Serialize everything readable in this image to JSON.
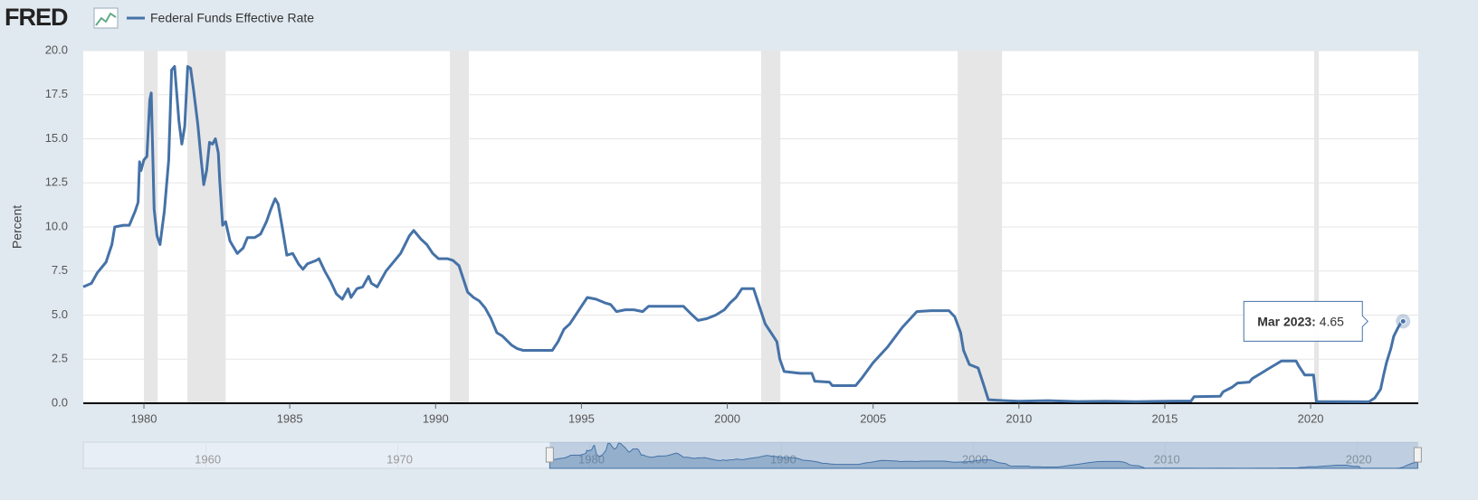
{
  "header": {
    "logo": "FRED"
  },
  "chart_data": {
    "type": "line",
    "y_label": "Percent",
    "series": [
      {
        "name": "Federal Funds Effective Rate",
        "color": "#4572a7",
        "x": [
          1977.92,
          1978.2,
          1978.4,
          1978.7,
          1978.9,
          1979.0,
          1979.3,
          1979.5,
          1979.7,
          1979.8,
          1979.85,
          1979.9,
          1980.0,
          1980.1,
          1980.2,
          1980.25,
          1980.35,
          1980.45,
          1980.55,
          1980.7,
          1980.85,
          1980.95,
          1981.05,
          1981.2,
          1981.3,
          1981.4,
          1981.5,
          1981.6,
          1981.7,
          1981.85,
          1981.95,
          1982.05,
          1982.15,
          1982.25,
          1982.35,
          1982.45,
          1982.55,
          1982.6,
          1982.7,
          1982.8,
          1982.95,
          1983.2,
          1983.4,
          1983.55,
          1983.8,
          1984.0,
          1984.2,
          1984.35,
          1984.5,
          1984.6,
          1984.75,
          1984.9,
          1985.1,
          1985.3,
          1985.45,
          1985.6,
          1985.9,
          1986.0,
          1986.2,
          1986.4,
          1986.6,
          1986.8,
          1987.0,
          1987.1,
          1987.3,
          1987.5,
          1987.7,
          1987.8,
          1988.0,
          1988.3,
          1988.6,
          1988.8,
          1989.1,
          1989.25,
          1989.5,
          1989.7,
          1989.9,
          1990.1,
          1990.4,
          1990.6,
          1990.8,
          1990.9,
          1991.1,
          1991.3,
          1991.5,
          1991.7,
          1991.9,
          1992.1,
          1992.3,
          1992.6,
          1992.8,
          1993.0,
          1993.5,
          1994.0,
          1994.2,
          1994.4,
          1994.6,
          1994.8,
          1995.0,
          1995.2,
          1995.5,
          1995.8,
          1996.0,
          1996.2,
          1996.5,
          1996.8,
          1997.1,
          1997.3,
          1997.7,
          1998.0,
          1998.5,
          1998.8,
          1999.0,
          1999.3,
          1999.6,
          1999.9,
          2000.1,
          2000.3,
          2000.5,
          2000.9,
          2001.0,
          2001.1,
          2001.3,
          2001.5,
          2001.7,
          2001.8,
          2001.95,
          2002.5,
          2002.9,
          2003.0,
          2003.5,
          2003.6,
          2004.4,
          2004.6,
          2005.0,
          2005.5,
          2006.0,
          2006.5,
          2007.0,
          2007.6,
          2007.8,
          2008.0,
          2008.1,
          2008.3,
          2008.6,
          2008.8,
          2008.95,
          2009.5,
          2010.0,
          2011.0,
          2012.0,
          2013.0,
          2014.0,
          2015.0,
          2015.9,
          2016.0,
          2016.9,
          2017.0,
          2017.3,
          2017.5,
          2017.9,
          2018.0,
          2018.3,
          2018.5,
          2018.8,
          2019.0,
          2019.5,
          2019.6,
          2019.8,
          2020.1,
          2020.2,
          2021.0,
          2022.0,
          2022.2,
          2022.4,
          2022.5,
          2022.6,
          2022.75,
          2022.85,
          2023.0,
          2023.1,
          2023.17
        ],
        "values": [
          6.6,
          6.8,
          7.4,
          8.0,
          9.0,
          10.0,
          10.1,
          10.1,
          10.9,
          11.4,
          13.7,
          13.2,
          13.8,
          14.0,
          17.2,
          17.6,
          11.0,
          9.5,
          9.0,
          10.9,
          13.8,
          18.9,
          19.1,
          16.0,
          14.7,
          15.7,
          19.1,
          19.0,
          17.8,
          15.8,
          14.0,
          12.4,
          13.2,
          14.8,
          14.7,
          15.0,
          14.2,
          12.6,
          10.1,
          10.3,
          9.2,
          8.5,
          8.8,
          9.4,
          9.4,
          9.6,
          10.3,
          11.0,
          11.6,
          11.3,
          9.9,
          8.4,
          8.5,
          7.9,
          7.6,
          7.9,
          8.1,
          8.2,
          7.5,
          6.9,
          6.2,
          5.9,
          6.5,
          6.0,
          6.5,
          6.6,
          7.2,
          6.8,
          6.6,
          7.5,
          8.1,
          8.5,
          9.5,
          9.8,
          9.3,
          9.0,
          8.5,
          8.2,
          8.2,
          8.1,
          7.8,
          7.3,
          6.3,
          6.0,
          5.8,
          5.4,
          4.8,
          4.0,
          3.8,
          3.3,
          3.1,
          3.0,
          3.0,
          3.0,
          3.5,
          4.2,
          4.5,
          5.0,
          5.5,
          6.0,
          5.9,
          5.7,
          5.6,
          5.2,
          5.3,
          5.3,
          5.2,
          5.5,
          5.5,
          5.5,
          5.5,
          5.0,
          4.7,
          4.8,
          5.0,
          5.3,
          5.7,
          6.0,
          6.5,
          6.5,
          6.0,
          5.5,
          4.5,
          4.0,
          3.5,
          2.5,
          1.8,
          1.7,
          1.7,
          1.25,
          1.2,
          1.0,
          1.0,
          1.4,
          2.3,
          3.2,
          4.3,
          5.2,
          5.25,
          5.25,
          4.9,
          4.0,
          3.0,
          2.2,
          2.0,
          1.0,
          0.2,
          0.15,
          0.12,
          0.15,
          0.1,
          0.12,
          0.09,
          0.12,
          0.13,
          0.37,
          0.4,
          0.65,
          0.9,
          1.15,
          1.2,
          1.4,
          1.7,
          1.9,
          2.2,
          2.4,
          2.4,
          2.1,
          1.6,
          1.6,
          0.1,
          0.09,
          0.08,
          0.3,
          0.8,
          1.6,
          2.3,
          3.1,
          3.8,
          4.3,
          4.57,
          4.65
        ]
      }
    ],
    "recessions": [
      [
        1980.0,
        1980.47
      ],
      [
        1981.49,
        1982.8
      ],
      [
        1990.49,
        1991.14
      ],
      [
        2001.16,
        2001.82
      ],
      [
        2007.9,
        2009.42
      ],
      [
        2020.12,
        2020.28
      ]
    ],
    "recession_color": "#e6e6e6",
    "xlim": [
      1977.92,
      2023.69
    ],
    "xticks": [
      1980,
      1985,
      1990,
      1995,
      2000,
      2005,
      2010,
      2015,
      2020
    ],
    "ylim": [
      0,
      20
    ],
    "yticks": [
      {
        "value": 0,
        "label": "0.0"
      },
      {
        "value": 2.5,
        "label": "2.5"
      },
      {
        "value": 5,
        "label": "5.0"
      },
      {
        "value": 7.5,
        "label": "7.5"
      },
      {
        "value": 10,
        "label": "10.0"
      },
      {
        "value": 12.5,
        "label": "12.5"
      },
      {
        "value": 15,
        "label": "15.0"
      },
      {
        "value": 17.5,
        "label": "17.5"
      },
      {
        "value": 20,
        "label": "20.0"
      }
    ],
    "grid": true,
    "tooltip": {
      "label": "Mar 2023:",
      "x": 2023.17,
      "value": 4.65
    },
    "navigator": {
      "xlim": [
        1953.6,
        2023.2
      ],
      "xticks": [
        1960,
        1970,
        1980,
        1990,
        2000,
        2010,
        2020
      ]
    }
  }
}
